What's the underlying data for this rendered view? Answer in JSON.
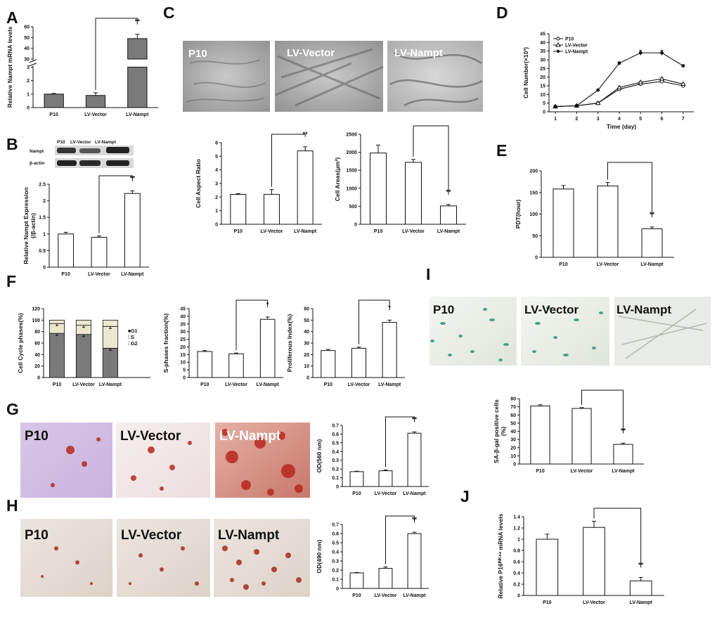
{
  "figure": {
    "panel_letters": [
      "A",
      "B",
      "C",
      "D",
      "E",
      "F",
      "G",
      "H",
      "I",
      "J"
    ],
    "colors": {
      "dark_bar": "#7a7a7a",
      "light_bar": "#ffffff",
      "s_phase": "#ece7cf",
      "axis": "#111111"
    }
  },
  "photos": {
    "C": [
      "P10",
      "LV-Vector",
      "LV-Nampt"
    ],
    "G": [
      "P10",
      "LV-Vector",
      "LV-Nampt"
    ],
    "H": [
      "P10",
      "LV-Vector",
      "LV-Nampt"
    ],
    "I": [
      "P10",
      "LV-Vector",
      "LV-Nampt"
    ]
  },
  "blot": {
    "columns": [
      "P10",
      "LV-Vector",
      "LV-Nampt"
    ],
    "rows": [
      "Nampt",
      "β-actin"
    ]
  },
  "chart_data": [
    {
      "id": "A",
      "type": "bar",
      "categories": [
        "P10",
        "LV-Vector",
        "LV-Nampt"
      ],
      "values": [
        1.0,
        0.9,
        49
      ],
      "errors": [
        0.05,
        0.2,
        4
      ],
      "ylabel": "Relative Nampt  mRNA levels",
      "broken_axis": true,
      "lower_ticks": [
        0,
        1,
        2,
        3
      ],
      "upper_ticks": [
        30,
        40,
        50,
        60
      ],
      "bar_color": "dark",
      "significance": {
        "from": 1,
        "to": 2,
        "label": "**"
      }
    },
    {
      "id": "B",
      "type": "bar",
      "categories": [
        "P10",
        "LV-Vector",
        "LV-Nampt"
      ],
      "values": [
        1.0,
        0.9,
        2.22
      ],
      "errors": [
        0.05,
        0.04,
        0.08
      ],
      "ylabel": "Relative Nampt Expression",
      "ylabel2": "(/β-actin)",
      "ylim": [
        0,
        2.5
      ],
      "yticks": [
        0,
        0.5,
        1,
        1.5,
        2,
        2.5
      ],
      "bar_color": "light",
      "significance": {
        "from": 1,
        "to": 2,
        "label": "**"
      }
    },
    {
      "id": "C1",
      "type": "bar",
      "categories": [
        "P10",
        "LV-Vector",
        "LV-Nampt"
      ],
      "values": [
        2.2,
        2.2,
        5.4
      ],
      "errors": [
        0.05,
        0.35,
        0.3
      ],
      "ylabel": "Cell Aspect Ratio",
      "ylim": [
        0,
        6
      ],
      "yticks": [
        0,
        1,
        2,
        3,
        4,
        5,
        6
      ],
      "bar_color": "light",
      "significance": {
        "from": 1,
        "to": 2,
        "label": "**"
      }
    },
    {
      "id": "C2",
      "type": "bar",
      "categories": [
        "P10",
        "LV-Vector",
        "LV-Nampt"
      ],
      "values": [
        1980,
        1720,
        510
      ],
      "errors": [
        220,
        80,
        40
      ],
      "ylabel": "Cell Areas(μm²)",
      "ylim": [
        0,
        2500
      ],
      "yticks": [
        0,
        500,
        1000,
        1500,
        2000,
        2500
      ],
      "bar_color": "light",
      "significance": {
        "from": 1,
        "to": 2,
        "label": "**"
      }
    },
    {
      "id": "D",
      "type": "line",
      "x": [
        1,
        2,
        3,
        4,
        5,
        6,
        7
      ],
      "series": [
        {
          "name": "P10",
          "values": [
            3,
            3.5,
            5,
            13,
            16,
            17.5,
            15
          ],
          "errors": [
            0.2,
            0.2,
            0.3,
            0.6,
            0.6,
            0.6,
            0.5
          ],
          "marker": "open-circle"
        },
        {
          "name": "LV-Vector",
          "values": [
            3,
            3.5,
            5,
            14,
            17,
            19,
            16
          ],
          "errors": [
            0.2,
            0.2,
            0.3,
            0.6,
            0.6,
            0.6,
            0.5
          ],
          "marker": "open-triangle"
        },
        {
          "name": "LV-Nampt",
          "values": [
            3,
            3.5,
            12.5,
            28,
            34,
            34,
            26.5
          ],
          "errors": [
            0.2,
            0.2,
            0.5,
            0.8,
            1.4,
            1.4,
            0.6
          ],
          "marker": "filled-circle"
        }
      ],
      "xlabel": "Time (day)",
      "ylabel": "Cell Number(×10³)",
      "ylim": [
        0,
        45
      ],
      "yticks": [
        0,
        5,
        10,
        15,
        20,
        25,
        30,
        35,
        40,
        45
      ],
      "xticks": [
        1,
        2,
        3,
        4,
        5,
        6,
        7
      ],
      "legend": "top-left"
    },
    {
      "id": "E",
      "type": "bar",
      "categories": [
        "P10",
        "LV-Vector",
        "LV-Nampt"
      ],
      "values": [
        158,
        165,
        66
      ],
      "errors": [
        8,
        8,
        4
      ],
      "ylabel": "PDT(hour)",
      "ylim": [
        0,
        200
      ],
      "yticks": [
        0,
        50,
        100,
        150,
        200
      ],
      "bar_color": "light",
      "significance": {
        "from": 1,
        "to": 2,
        "label": "**"
      }
    },
    {
      "id": "F1",
      "type": "stacked-bar",
      "categories": [
        "P10",
        "LV-Vector",
        "LV-Nampt"
      ],
      "series": [
        {
          "name": "G1",
          "values": [
            77,
            75,
            51
          ],
          "color": "dark"
        },
        {
          "name": "S",
          "values": [
            17,
            16,
            38
          ],
          "color": "cream"
        },
        {
          "name": "G2",
          "values": [
            6,
            9,
            11
          ],
          "color": "cream"
        }
      ],
      "ylabel": "Cell  Cycle  phases(%)",
      "ylim": [
        0,
        120
      ],
      "yticks": [
        0,
        20,
        40,
        60,
        80,
        100,
        120
      ],
      "legend_labels": [
        "■G1",
        "□S",
        "□G2"
      ],
      "legend": "right"
    },
    {
      "id": "F2",
      "type": "bar",
      "categories": [
        "P10",
        "LV-Vector",
        "LV-Nampt"
      ],
      "values": [
        17,
        15.5,
        38
      ],
      "errors": [
        0.6,
        0.5,
        1.5
      ],
      "ylabel": "S-phases fraction(%)",
      "ylim": [
        0,
        45
      ],
      "yticks": [
        0,
        5,
        10,
        15,
        20,
        25,
        30,
        35,
        40,
        45
      ],
      "bar_color": "light",
      "significance": {
        "from": 1,
        "to": 2,
        "label": "*"
      }
    },
    {
      "id": "F3",
      "type": "bar",
      "categories": [
        "P10",
        "LV-Vector",
        "LV-Nampt"
      ],
      "values": [
        23.5,
        25.5,
        48
      ],
      "errors": [
        1,
        1,
        2
      ],
      "ylabel": "Proliferous Index(%)",
      "ylim": [
        0,
        60
      ],
      "yticks": [
        0,
        10,
        20,
        30,
        40,
        50,
        60
      ],
      "bar_color": "light",
      "significance": {
        "from": 1,
        "to": 2,
        "label": "*"
      }
    },
    {
      "id": "G",
      "type": "bar",
      "categories": [
        "P10",
        "LV-Vector",
        "LV-Nampt"
      ],
      "values": [
        0.17,
        0.18,
        0.61
      ],
      "errors": [
        0.005,
        0.01,
        0.015
      ],
      "ylabel": "OD(560 nm)",
      "ylim": [
        0,
        0.7
      ],
      "yticks": [
        0,
        0.1,
        0.2,
        0.3,
        0.4,
        0.5,
        0.6,
        0.7
      ],
      "bar_color": "light",
      "significance": {
        "from": 1,
        "to": 2,
        "label": "**"
      }
    },
    {
      "id": "H",
      "type": "bar",
      "categories": [
        "P10",
        "LV-Vector",
        "LV-Nampt"
      ],
      "values": [
        0.17,
        0.22,
        0.6
      ],
      "errors": [
        0.005,
        0.015,
        0.015
      ],
      "ylabel": "OD(490 nm)",
      "ylim": [
        0,
        0.7
      ],
      "yticks": [
        0,
        0.1,
        0.2,
        0.3,
        0.4,
        0.5,
        0.6,
        0.7
      ],
      "bar_color": "light",
      "significance": {
        "from": 1,
        "to": 2,
        "label": "**"
      }
    },
    {
      "id": "I",
      "type": "bar",
      "categories": [
        "P10",
        "LV-Vector",
        "LV-Nampt"
      ],
      "values": [
        71,
        68,
        24
      ],
      "errors": [
        1.5,
        1,
        1.5
      ],
      "ylabel": "SA-β-gal positive cells",
      "ylabel2": "(%)",
      "ylim": [
        0,
        80
      ],
      "yticks": [
        0,
        10,
        20,
        30,
        40,
        50,
        60,
        70,
        80
      ],
      "bar_color": "light",
      "significance": {
        "from": 1,
        "to": 2,
        "label": "**"
      }
    },
    {
      "id": "J",
      "type": "bar",
      "categories": [
        "P10",
        "LV-Vector",
        "LV-Nampt"
      ],
      "values": [
        1.0,
        1.21,
        0.26
      ],
      "errors": [
        0.09,
        0.11,
        0.06
      ],
      "ylabel": "Relative P16ᴵᴺᴷ⁴ᵃ mRNA levels",
      "ylim": [
        0,
        1.4
      ],
      "yticks": [
        0,
        0.2,
        0.4,
        0.6,
        0.8,
        1,
        1.2,
        1.4
      ],
      "bar_color": "light",
      "significance": {
        "from": 1,
        "to": 2,
        "label": "**"
      }
    }
  ]
}
